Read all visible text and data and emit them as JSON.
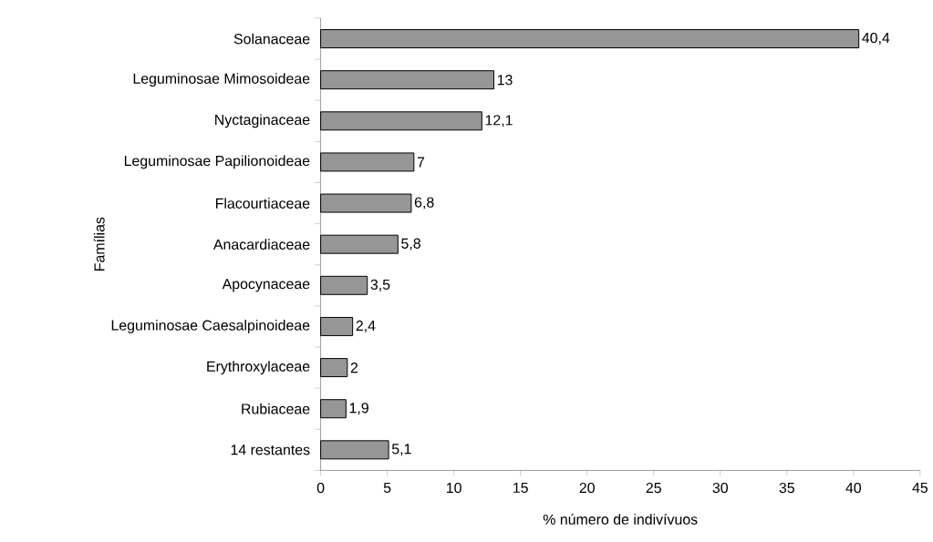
{
  "chart_data": {
    "type": "bar",
    "orientation": "horizontal",
    "xlabel": "% número de indivívuos",
    "ylabel": "Famílias",
    "categories": [
      "Solanaceae",
      "Leguminosae Mimosoideae",
      "Nyctaginaceae",
      "Leguminosae Papilionoideae",
      "Flacourtiaceae",
      "Anacardiaceae",
      "Apocynaceae",
      "Leguminosae Caesalpinoideae",
      "Erythroxylaceae",
      "Rubiaceae",
      "14 restantes"
    ],
    "values": [
      40.4,
      13,
      12.1,
      7,
      6.8,
      5.8,
      3.5,
      2.4,
      2,
      1.9,
      5.1
    ],
    "value_labels": [
      "40,4",
      "13",
      "12,1",
      "7",
      "6,8",
      "5,8",
      "3,5",
      "2,4",
      "2",
      "1,9",
      "5,1"
    ],
    "color": "#969696",
    "xlim": [
      0,
      45
    ],
    "xticks": [
      0,
      5,
      10,
      15,
      20,
      25,
      30,
      35,
      40,
      45
    ]
  }
}
